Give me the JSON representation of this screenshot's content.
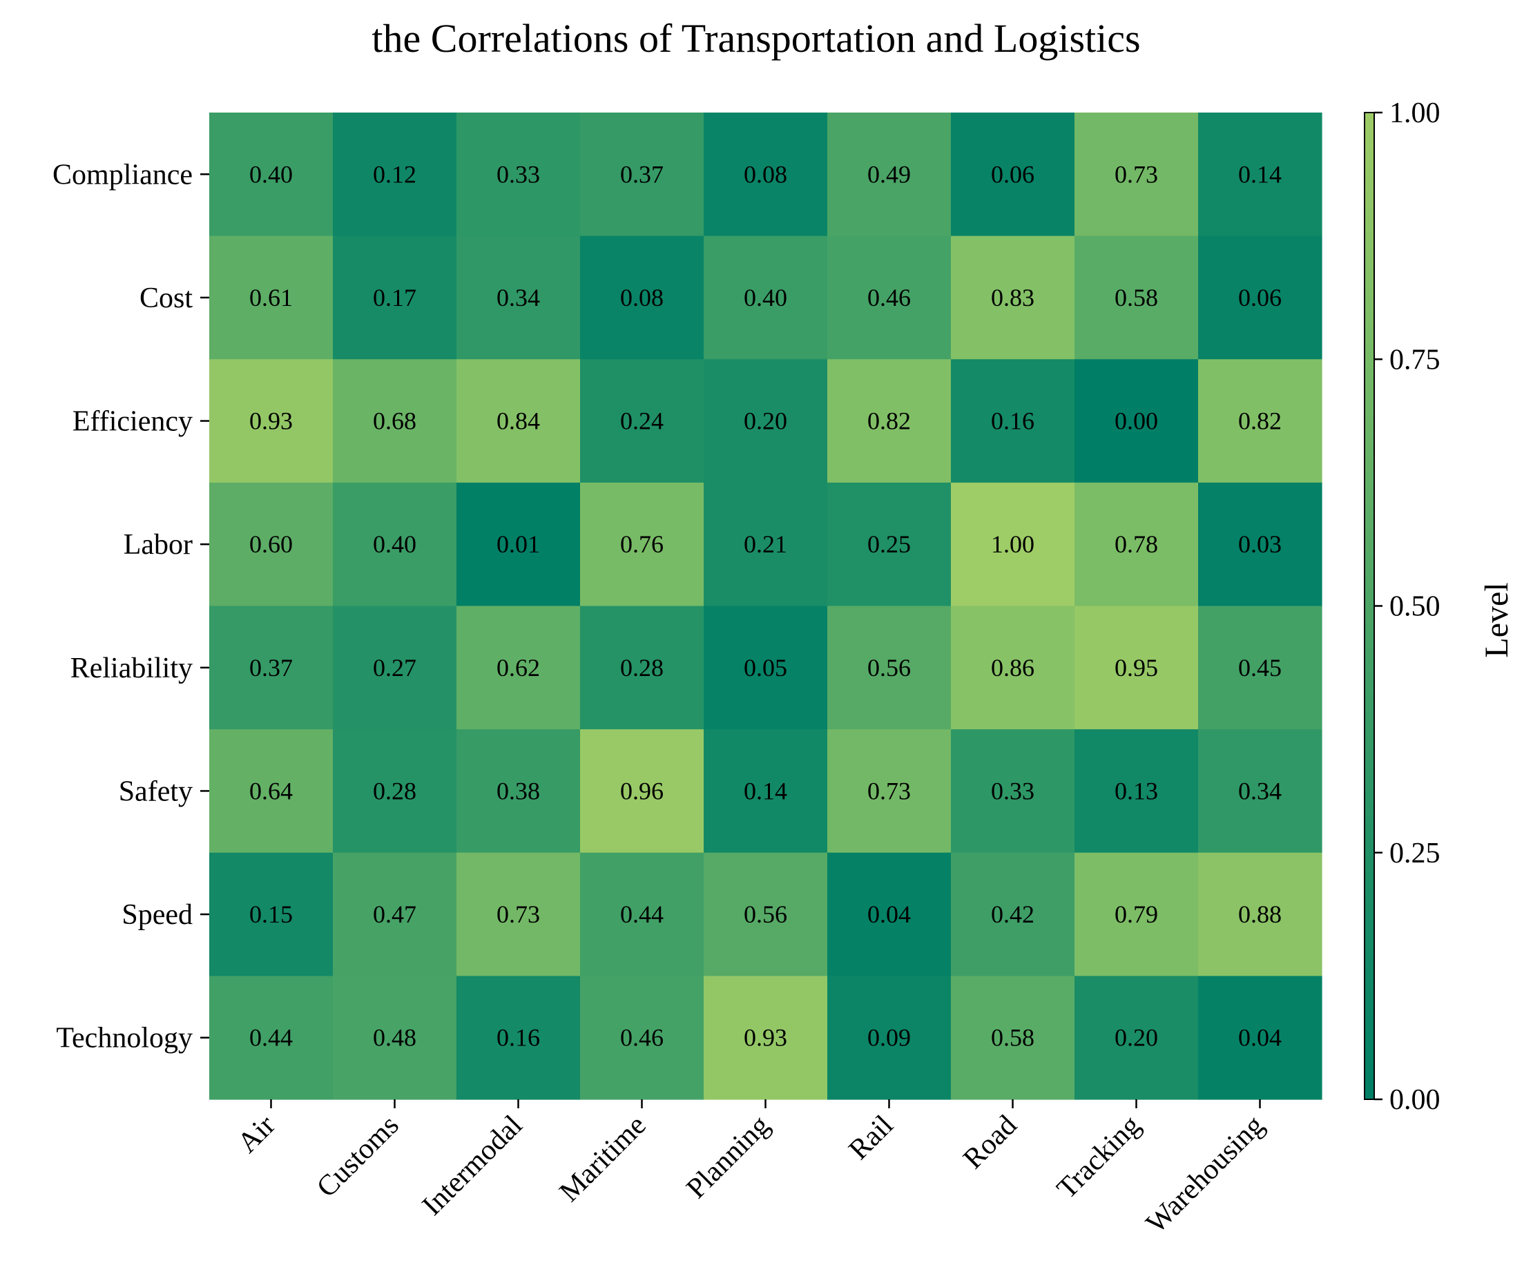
{
  "chart_data": {
    "type": "heatmap",
    "title": "the Correlations of Transportation and Logistics",
    "x_categories": [
      "Air",
      "Customs",
      "Intermodal",
      "Maritime",
      "Planning",
      "Rail",
      "Road",
      "Tracking",
      "Warehousing"
    ],
    "y_categories": [
      "Compliance",
      "Cost",
      "Efficiency",
      "Labor",
      "Reliability",
      "Safety",
      "Speed",
      "Technology"
    ],
    "values": [
      [
        0.4,
        0.12,
        0.33,
        0.37,
        0.08,
        0.49,
        0.06,
        0.73,
        0.14
      ],
      [
        0.61,
        0.17,
        0.34,
        0.08,
        0.4,
        0.46,
        0.83,
        0.58,
        0.06
      ],
      [
        0.93,
        0.68,
        0.84,
        0.24,
        0.2,
        0.82,
        0.16,
        0.0,
        0.82
      ],
      [
        0.6,
        0.4,
        0.01,
        0.76,
        0.21,
        0.25,
        1.0,
        0.78,
        0.03
      ],
      [
        0.37,
        0.27,
        0.62,
        0.28,
        0.05,
        0.56,
        0.86,
        0.95,
        0.45
      ],
      [
        0.64,
        0.28,
        0.38,
        0.96,
        0.14,
        0.73,
        0.33,
        0.13,
        0.34
      ],
      [
        0.15,
        0.47,
        0.73,
        0.44,
        0.56,
        0.04,
        0.42,
        0.79,
        0.88
      ],
      [
        0.44,
        0.48,
        0.16,
        0.46,
        0.93,
        0.09,
        0.58,
        0.2,
        0.04
      ]
    ],
    "value_format": "2 decimals",
    "colorbar": {
      "label": "Level",
      "range": [
        0.0,
        1.0
      ],
      "ticks": [
        "0.00",
        "0.25",
        "0.50",
        "0.75",
        "1.00"
      ],
      "colormap_low": "#007f66",
      "colormap_high": "#9ecc66"
    },
    "grid": false,
    "legend": "colorbar-right"
  }
}
